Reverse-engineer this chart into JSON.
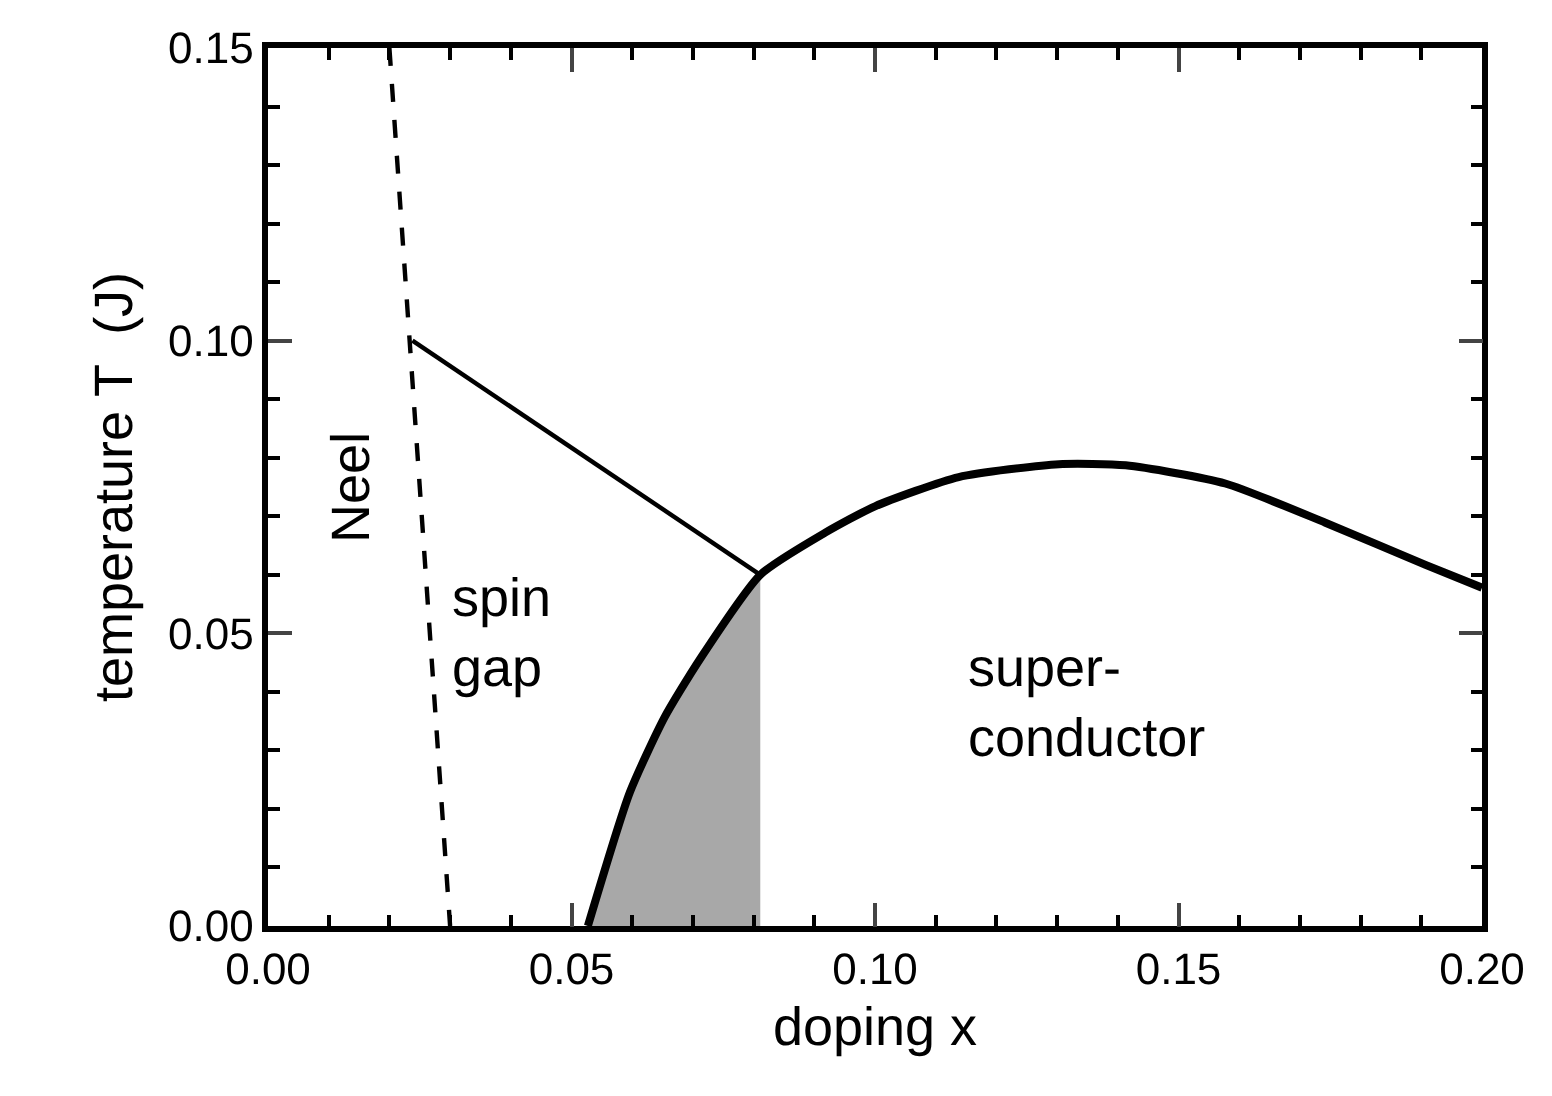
{
  "chart_data": {
    "type": "line",
    "xlabel": "doping x",
    "ylabel": "temperature T  (J)",
    "xlim": [
      0,
      0.2
    ],
    "ylim": [
      0,
      0.15
    ],
    "xticks": [
      {
        "value": 0,
        "label": "0.00"
      },
      0.05,
      {
        "value": 0.1,
        "label": "0.10"
      },
      0.15,
      {
        "value": 0.2,
        "label": "0.20"
      }
    ],
    "yticks": [
      {
        "value": 0,
        "label": "0.00"
      },
      0.05,
      {
        "value": 0.1,
        "label": "0.10"
      },
      0.15
    ],
    "marker": "none",
    "series": [
      {
        "type": "area",
        "color": "#a8a8a8",
        "x": [
          0.0527,
          0.0596,
          0.0653,
          0.0711,
          0.0811
        ],
        "values": [
          0,
          0.0228,
          0.0356,
          0.0455,
          0.06
        ]
      },
      {
        "color": "#000000",
        "line_style": "dashed",
        "x": [
          0.02,
          0.03
        ],
        "values": [
          0.15,
          0
        ]
      },
      {
        "color": "#000000",
        "line_style": "solid",
        "x": [
          0.0238,
          0.0811
        ],
        "values": [
          0.1,
          0.06
        ]
      },
      {
        "color": "#000000",
        "line_style": "solid",
        "x": [
          0.0527,
          0.0596,
          0.0653,
          0.0711,
          0.0811,
          0.0918,
          0.1,
          0.1138,
          0.1303,
          0.1413,
          0.1577,
          0.1742,
          0.1907,
          0.2
        ],
        "values": [
          0,
          0.0228,
          0.0356,
          0.0455,
          0.06,
          0.0672,
          0.0717,
          0.0767,
          0.0789,
          0.0787,
          0.0756,
          0.0689,
          0.0617,
          0.0578
        ]
      }
    ],
    "annotations": [
      "Neel",
      "spin\ngap",
      "super-\nconductor"
    ]
  }
}
